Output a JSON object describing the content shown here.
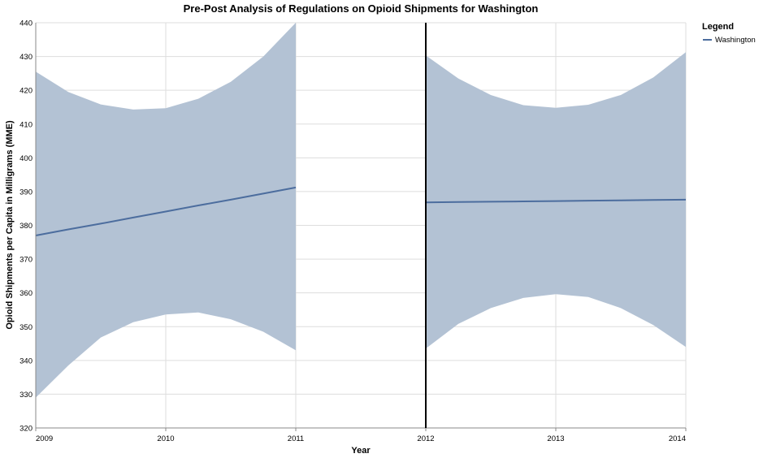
{
  "chart_data": {
    "type": "line",
    "title": "Pre-Post Analysis of Regulations on Opioid Shipments for Washington",
    "xlabel": "Year",
    "ylabel": "Opioid Shipments per Capita in Milligrams (MME)",
    "xlim": [
      2009,
      2014
    ],
    "ylim": [
      320,
      440
    ],
    "x_ticks": [
      "2009",
      "2010",
      "2011",
      "2012",
      "2013",
      "2014"
    ],
    "y_ticks": [
      "320",
      "330",
      "340",
      "350",
      "360",
      "370",
      "380",
      "390",
      "400",
      "410",
      "420",
      "430",
      "440"
    ],
    "grid": true,
    "policy_line_x": 2012,
    "legend": {
      "title": "Legend",
      "position": "top-right",
      "entries": [
        "Washington"
      ]
    },
    "colors": {
      "line": "#4c6d9e",
      "band": "#b3c2d4",
      "grid": "#dddddd",
      "axis": "#888888",
      "policy": "#000000"
    },
    "series": [
      {
        "name": "Washington",
        "segments": [
          {
            "x": [
              2009,
              2009.25,
              2009.5,
              2009.75,
              2010,
              2010.25,
              2010.5,
              2010.75,
              2011
            ],
            "y": [
              377,
              378.8,
              380.5,
              382.3,
              384.1,
              385.9,
              387.6,
              389.4,
              391.2
            ],
            "ci_lower": [
              329,
              338.5,
              346.8,
              351.3,
              353.6,
              354.2,
              352.2,
              348.5,
              343
            ],
            "ci_upper": [
              425.5,
              419.5,
              415.8,
              414.3,
              414.7,
              417.5,
              422.5,
              430,
              440
            ]
          },
          {
            "x": [
              2012,
              2012.25,
              2012.5,
              2012.75,
              2013,
              2013.25,
              2013.5,
              2013.75,
              2014
            ],
            "y": [
              386.8,
              386.9,
              387,
              387.1,
              387.2,
              387.3,
              387.4,
              387.5,
              387.6
            ],
            "ci_lower": [
              343.5,
              350.8,
              355.5,
              358.5,
              359.6,
              358.8,
              355.5,
              350.5,
              344
            ],
            "ci_upper": [
              430.3,
              423.5,
              418.6,
              415.6,
              414.8,
              415.7,
              418.6,
              423.8,
              431.3
            ]
          }
        ]
      }
    ]
  }
}
